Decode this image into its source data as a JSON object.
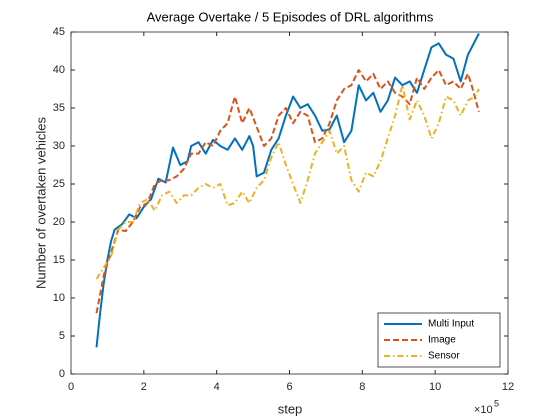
{
  "chart_data": {
    "type": "line",
    "title": "Average Overtake / 5 Episodes of DRL algorithms",
    "x_label": "step",
    "y_label": "Number of overtaken vehicles",
    "x_exponent_base": "×10",
    "x_exponent": "5",
    "xlim": [
      0,
      12
    ],
    "xticks": [
      0,
      2,
      4,
      6,
      8,
      10,
      12
    ],
    "ylim": [
      0,
      45
    ],
    "yticks": [
      0,
      5,
      10,
      15,
      20,
      25,
      30,
      35,
      40,
      45
    ],
    "legend_position": "lower-right",
    "series": [
      {
        "name": "Multi Input",
        "color": "#0072BD",
        "dash": "solid",
        "x": [
          0.7,
          0.8,
          0.9,
          1.0,
          1.1,
          1.2,
          1.4,
          1.6,
          1.8,
          2.0,
          2.2,
          2.4,
          2.6,
          2.8,
          3.0,
          3.2,
          3.3,
          3.5,
          3.7,
          3.9,
          4.1,
          4.3,
          4.5,
          4.7,
          4.9,
          5.0,
          5.1,
          5.3,
          5.5,
          5.7,
          5.9,
          6.1,
          6.3,
          6.5,
          6.7,
          6.9,
          7.1,
          7.3,
          7.5,
          7.7,
          7.9,
          8.1,
          8.3,
          8.5,
          8.7,
          8.9,
          9.1,
          9.3,
          9.5,
          9.7,
          9.9,
          10.1,
          10.3,
          10.5,
          10.7,
          10.9,
          11.2
        ],
        "values": [
          3.5,
          8,
          12,
          15,
          17.5,
          19,
          19.7,
          21,
          20.5,
          22,
          23,
          25.7,
          25.2,
          29.8,
          27.5,
          28,
          30,
          30.5,
          29,
          30.8,
          30,
          29.5,
          31,
          29.5,
          31.3,
          30,
          26,
          26.5,
          29.5,
          31,
          34,
          36.5,
          35,
          35.5,
          34,
          32,
          32.2,
          34,
          30.5,
          32,
          38,
          36,
          37,
          34.5,
          36,
          39,
          38,
          38.5,
          37,
          40,
          43,
          43.5,
          42,
          41.5,
          38.5,
          42,
          44.8
        ]
      },
      {
        "name": "Image",
        "color": "#D95319",
        "dash": "dashed",
        "x": [
          0.7,
          0.9,
          1.1,
          1.3,
          1.5,
          1.7,
          1.9,
          2.1,
          2.3,
          2.5,
          2.7,
          2.9,
          3.1,
          3.3,
          3.5,
          3.7,
          3.9,
          4.1,
          4.3,
          4.5,
          4.7,
          4.9,
          5.1,
          5.3,
          5.5,
          5.7,
          5.9,
          6.1,
          6.3,
          6.5,
          6.7,
          6.9,
          7.1,
          7.3,
          7.5,
          7.7,
          7.9,
          8.1,
          8.3,
          8.5,
          8.7,
          8.9,
          9.1,
          9.3,
          9.5,
          9.7,
          9.9,
          10.1,
          10.3,
          10.5,
          10.7,
          10.9,
          11.0,
          11.2
        ],
        "values": [
          8,
          13,
          16,
          19,
          18.8,
          20,
          22,
          22.5,
          25,
          25.5,
          25.5,
          26,
          27,
          29,
          29,
          30.5,
          30,
          32,
          33,
          36.5,
          33,
          35,
          32.5,
          30,
          31,
          34,
          35,
          33,
          34.5,
          34,
          30.5,
          31,
          33,
          36,
          37.5,
          38,
          40,
          38.5,
          39.5,
          37.5,
          38.5,
          37,
          36.5,
          35.5,
          39,
          37.5,
          39,
          40,
          38,
          38.5,
          37.5,
          39.5,
          38,
          34.5
        ]
      },
      {
        "name": "Sensor",
        "color": "#EDB120",
        "dash": "dashdot",
        "x": [
          0.7,
          0.9,
          1.1,
          1.3,
          1.5,
          1.7,
          1.9,
          2.1,
          2.3,
          2.5,
          2.7,
          2.9,
          3.1,
          3.3,
          3.5,
          3.7,
          3.9,
          4.1,
          4.3,
          4.5,
          4.7,
          4.9,
          5.1,
          5.3,
          5.5,
          5.7,
          5.9,
          6.1,
          6.3,
          6.5,
          6.7,
          6.9,
          7.1,
          7.3,
          7.5,
          7.7,
          7.9,
          8.1,
          8.3,
          8.5,
          8.7,
          8.9,
          9.1,
          9.3,
          9.5,
          9.7,
          9.9,
          10.1,
          10.3,
          10.5,
          10.7,
          10.9,
          11.1,
          11.2
        ],
        "values": [
          12.5,
          14,
          15.5,
          19,
          20,
          20,
          22.5,
          23,
          21.5,
          23.5,
          24,
          22.5,
          23.5,
          23.5,
          24.5,
          25,
          24.5,
          25,
          22.2,
          22.5,
          24,
          22.5,
          24.5,
          25.5,
          28.5,
          30.5,
          27.5,
          25,
          22.5,
          25.5,
          29,
          30.5,
          32,
          29,
          30,
          25.5,
          24,
          26.5,
          26,
          28,
          31,
          34,
          38,
          33.5,
          36,
          34,
          31,
          33,
          36.5,
          36,
          34,
          36,
          36.5,
          37.5
        ]
      }
    ]
  }
}
